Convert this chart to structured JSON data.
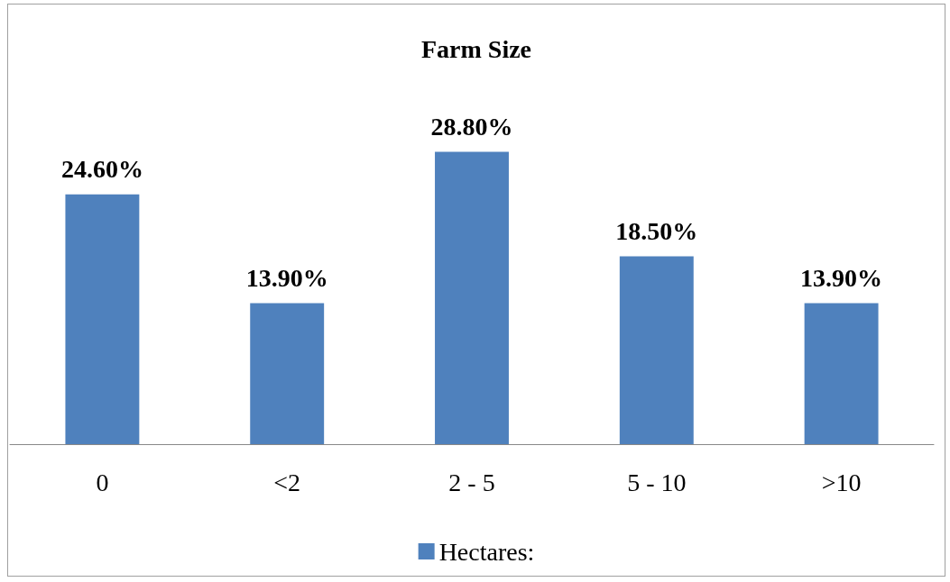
{
  "chart_data": {
    "type": "bar",
    "title": "Farm Size",
    "categories": [
      "0",
      "<2",
      "2 - 5",
      "5 - 10",
      ">10"
    ],
    "series": [
      {
        "name": "Hectares:",
        "color": "#4f81bd",
        "values": [
          24.6,
          13.9,
          28.8,
          18.5,
          13.9
        ],
        "value_labels": [
          "24.60%",
          "13.90%",
          "28.80%",
          "18.50%",
          "13.90%"
        ]
      }
    ],
    "legend": "bottom"
  }
}
